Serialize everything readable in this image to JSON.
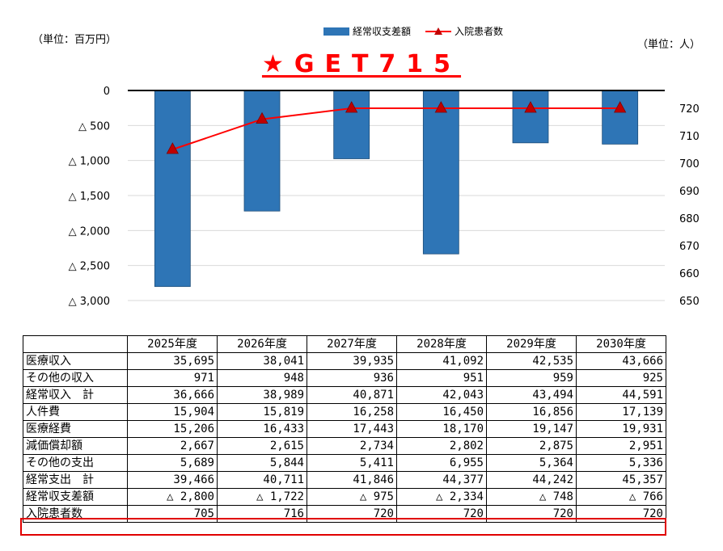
{
  "unit_left": "（単位：百万円）",
  "unit_right": "（単位：人）",
  "title": "★GET715",
  "legend": {
    "bar": "経常収支差額",
    "line": "入院患者数"
  },
  "colors": {
    "bar": "#2E75B6",
    "line": "#FF0000",
    "marker": "#C00000",
    "title": "#FF0000",
    "highlight": "#E00000"
  },
  "chart_data": {
    "type": "bar",
    "title": "★GET715",
    "categories": [
      "2025年度",
      "2026年度",
      "2027年度",
      "2028年度",
      "2029年度",
      "2030年度"
    ],
    "series": [
      {
        "name": "経常収支差額",
        "type": "bar",
        "axis": "left",
        "values": [
          -2800,
          -1722,
          -975,
          -2334,
          -748,
          -766
        ]
      },
      {
        "name": "入院患者数",
        "type": "line",
        "axis": "right",
        "values": [
          705,
          716,
          720,
          720,
          720,
          720
        ]
      }
    ],
    "left_axis": {
      "ylim": [
        -3000,
        0
      ],
      "ticks": [
        0,
        -500,
        -1000,
        -1500,
        -2000,
        -2500,
        -3000
      ],
      "tick_labels": [
        "0",
        "△ 500",
        "△ 1,000",
        "△ 1,500",
        "△ 2,000",
        "△ 2,500",
        "△ 3,000"
      ]
    },
    "right_axis": {
      "ylim": [
        650,
        725
      ],
      "ticks": [
        720,
        710,
        700,
        690,
        680,
        670,
        660,
        650
      ],
      "tick_labels": [
        "720",
        "710",
        "700",
        "690",
        "680",
        "670",
        "660",
        "650"
      ]
    },
    "grid": true,
    "legend_position": "top"
  },
  "table": {
    "headers": [
      "",
      "2025年度",
      "2026年度",
      "2027年度",
      "2028年度",
      "2029年度",
      "2030年度"
    ],
    "rows": [
      {
        "label": "医療収入",
        "values": [
          "35,695",
          "38,041",
          "39,935",
          "41,092",
          "42,535",
          "43,666"
        ]
      },
      {
        "label": "その他の収入",
        "values": [
          "971",
          "948",
          "936",
          "951",
          "959",
          "925"
        ]
      },
      {
        "label": "経常収入　計",
        "values": [
          "36,666",
          "38,989",
          "40,871",
          "42,043",
          "43,494",
          "44,591"
        ]
      },
      {
        "label": "人件費",
        "values": [
          "15,904",
          "15,819",
          "16,258",
          "16,450",
          "16,856",
          "17,139"
        ]
      },
      {
        "label": "医療経費",
        "values": [
          "15,206",
          "16,433",
          "17,443",
          "18,170",
          "19,147",
          "19,931"
        ]
      },
      {
        "label": "減価償却額",
        "values": [
          "2,667",
          "2,615",
          "2,734",
          "2,802",
          "2,875",
          "2,951"
        ]
      },
      {
        "label": "その他の支出",
        "values": [
          "5,689",
          "5,844",
          "5,411",
          "6,955",
          "5,364",
          "5,336"
        ]
      },
      {
        "label": "経常支出　計",
        "values": [
          "39,466",
          "40,711",
          "41,846",
          "44,377",
          "44,242",
          "45,357"
        ]
      },
      {
        "label": "経常収支差額",
        "values": [
          "△ 2,800",
          "△ 1,722",
          "△ 975",
          "△ 2,334",
          "△ 748",
          "△ 766"
        ]
      },
      {
        "label": "入院患者数",
        "values": [
          "705",
          "716",
          "720",
          "720",
          "720",
          "720"
        ]
      }
    ]
  }
}
